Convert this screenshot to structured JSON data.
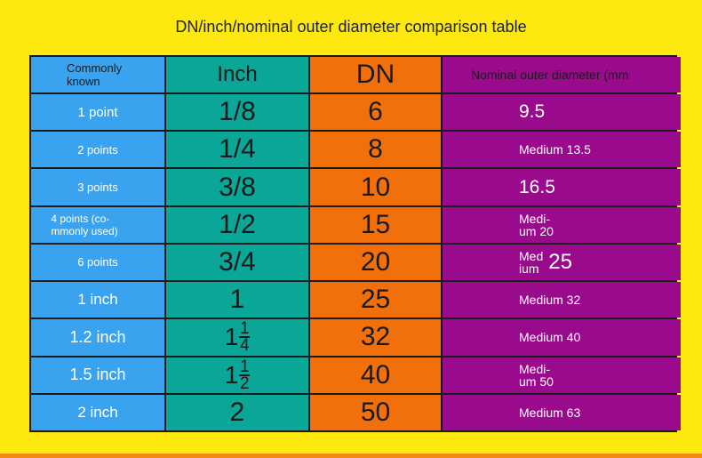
{
  "header": {
    "title": "DN/inch/nominal outer diameter comparison table"
  },
  "table": {
    "columns": [
      "Commonly known",
      "Inch",
      "DN",
      "Nominal outer diameter (mm"
    ],
    "rows": [
      [
        "1 point",
        "1/8",
        "6",
        "9.5"
      ],
      [
        "2 points",
        "1/4",
        "8",
        "Medium 13.5"
      ],
      [
        "3 points",
        "3/8",
        "10",
        "16.5"
      ],
      [
        {
          "lines": [
            "4 points (co-",
            "mmonly used)"
          ]
        },
        "1/2",
        "15",
        {
          "lines": [
            "Medi-",
            "um 20"
          ]
        }
      ],
      [
        "6 points",
        "3/4",
        "20",
        {
          "lines": [
            "Med",
            "ium"
          ],
          "big": "25"
        }
      ],
      [
        "1 inch",
        "1",
        "25",
        "Medium 32"
      ],
      [
        "1.2 inch",
        {
          "whole": "1",
          "num": "1",
          "den": "4"
        },
        "32",
        "Medium 40"
      ],
      [
        "1.5 inch",
        {
          "whole": "1",
          "num": "1",
          "den": "2"
        },
        "40",
        {
          "lines": [
            "Medi-",
            "um 50"
          ]
        }
      ],
      [
        "2 inch",
        "2",
        "50",
        "Medium 63"
      ]
    ]
  }
}
